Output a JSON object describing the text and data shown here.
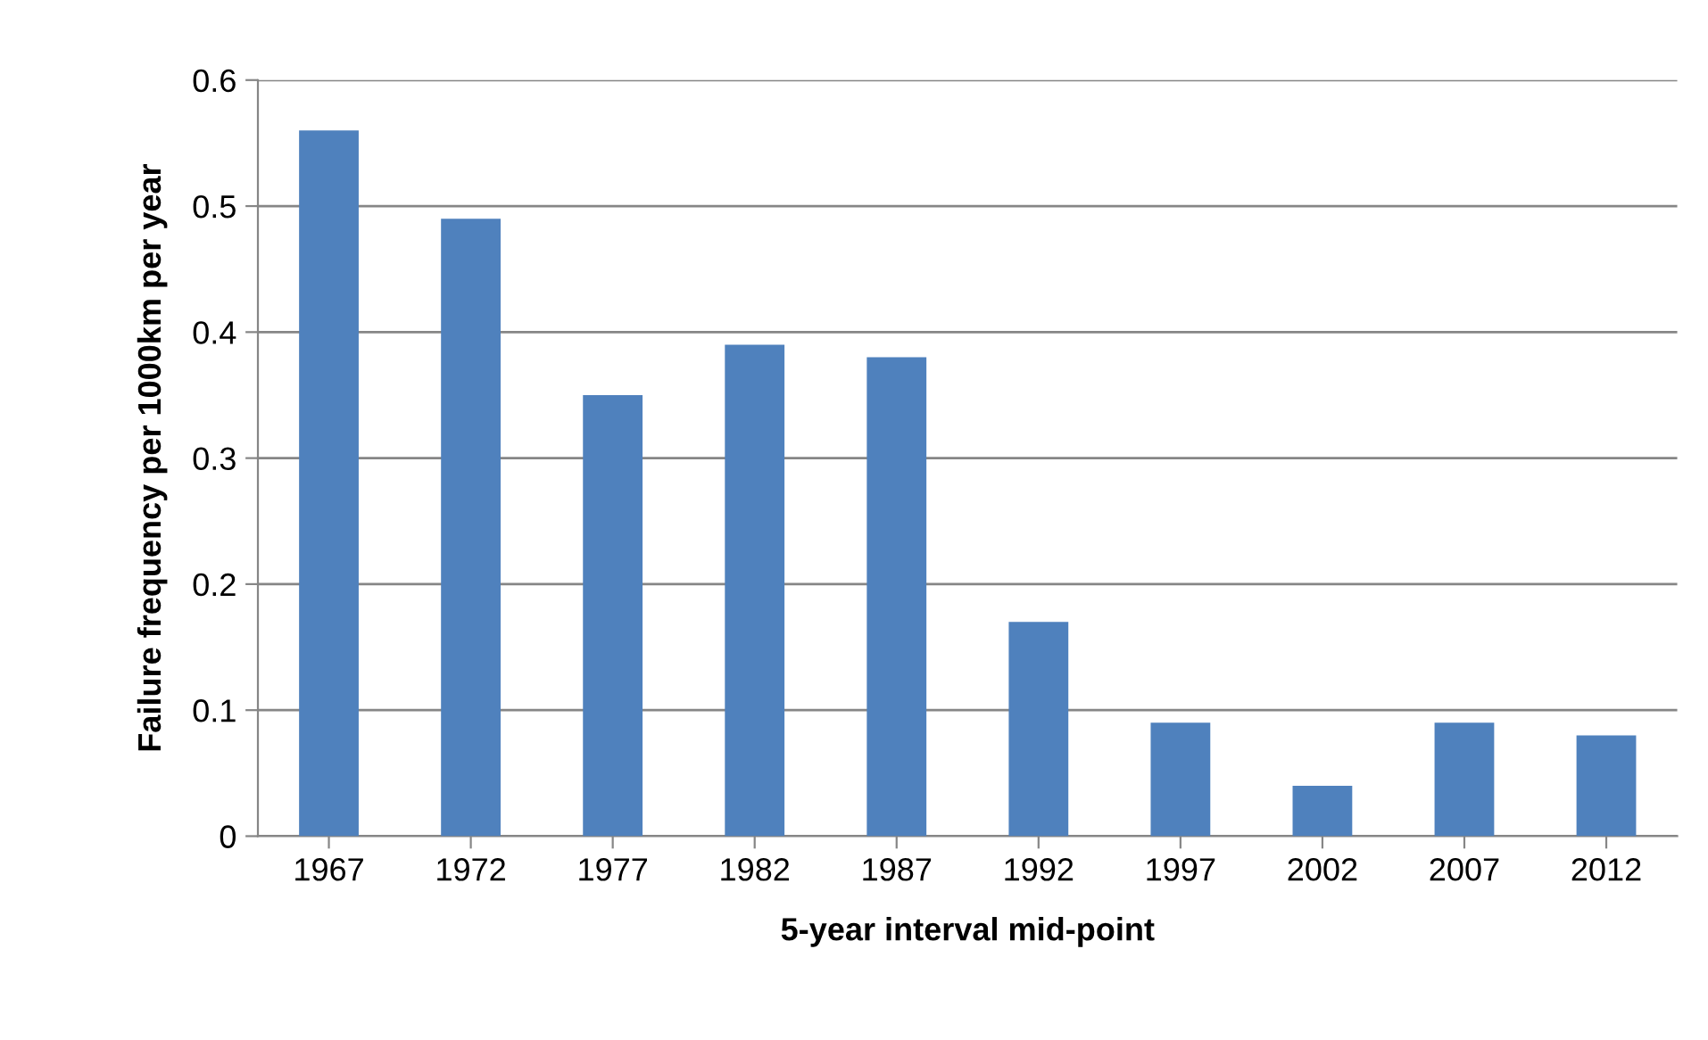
{
  "chart_data": {
    "type": "bar",
    "xlabel": "5-year interval mid-point",
    "ylabel": "Failure frequency per 1000km per year",
    "categories": [
      "1967",
      "1972",
      "1977",
      "1982",
      "1987",
      "1992",
      "1997",
      "2002",
      "2007",
      "2012"
    ],
    "values": [
      0.56,
      0.49,
      0.35,
      0.39,
      0.38,
      0.17,
      0.09,
      0.04,
      0.09,
      0.08
    ],
    "color": "#4f81bd",
    "ylim": [
      0,
      0.6
    ],
    "yticks": [
      {
        "value": 0,
        "label": "0"
      },
      0.1,
      0.2,
      0.3,
      0.4,
      0.5,
      0.6
    ],
    "grid": "y"
  }
}
